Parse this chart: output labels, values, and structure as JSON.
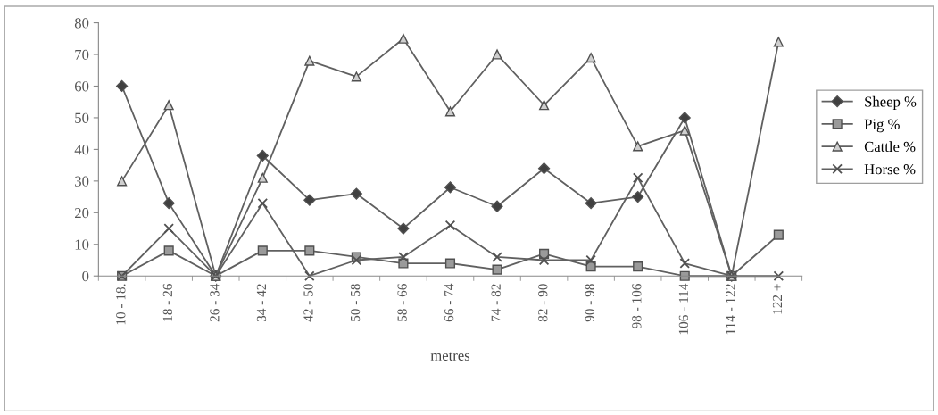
{
  "chart_data": {
    "type": "line",
    "xlabel": "metres",
    "categories": [
      "10 - 18.",
      "18 - 26",
      "26 - 34",
      "34 - 42",
      "42 - 50",
      "50 - 58",
      "58 - 66",
      "66 - 74",
      "74 - 82",
      "82 - 90",
      "90 - 98",
      "98 - 106",
      "106 - 114",
      "114 - 122",
      "122 +"
    ],
    "series": [
      {
        "name": "Sheep %",
        "color": "#606060",
        "marker": "diamond",
        "values": [
          60,
          23,
          0,
          38,
          24,
          26,
          15,
          28,
          22,
          34,
          23,
          25,
          50,
          0,
          null
        ]
      },
      {
        "name": "Pig %",
        "color": "#606060",
        "marker": "square",
        "values": [
          0,
          8,
          0,
          8,
          8,
          6,
          4,
          4,
          2,
          7,
          3,
          3,
          0,
          0,
          13
        ]
      },
      {
        "name": "Cattle %",
        "color": "#606060",
        "marker": "triangle",
        "values": [
          30,
          54,
          0,
          31,
          68,
          63,
          75,
          52,
          70,
          54,
          69,
          41,
          46,
          0,
          74
        ]
      },
      {
        "name": "Horse %",
        "color": "#606060",
        "marker": "cross",
        "values": [
          0,
          15,
          0,
          23,
          0,
          5,
          6,
          16,
          6,
          5,
          5,
          31,
          4,
          0,
          0
        ]
      }
    ],
    "ylim": [
      0,
      80
    ],
    "yticks": [
      0,
      10,
      20,
      30,
      40,
      50,
      60,
      70,
      80
    ],
    "grid": false,
    "legend": "right",
    "line_style": "solid"
  }
}
